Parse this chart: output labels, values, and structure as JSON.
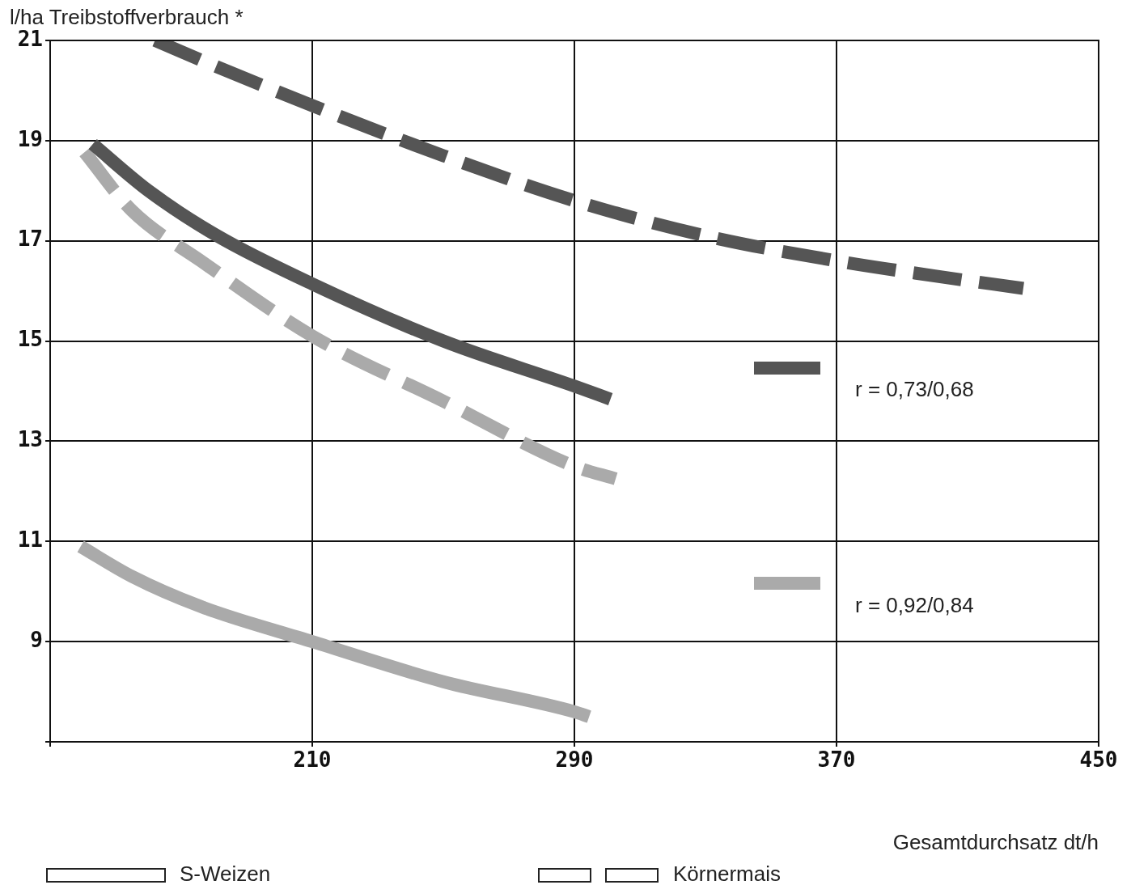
{
  "chart_data": {
    "type": "line",
    "ylabel": "l/ha  Treibstoffverbrauch *",
    "xlabel": "Gesamtdurchsatz  dt/h",
    "xlim": [
      130,
      450
    ],
    "xticks": [
      {
        "value": 130,
        "label": null
      },
      210,
      290,
      370,
      450
    ],
    "ylim": [
      7,
      21
    ],
    "yticks": [
      {
        "value": 7,
        "label": null
      },
      9,
      11,
      13,
      15,
      17,
      19,
      21
    ],
    "grid": true,
    "legend": false,
    "marker": "none",
    "series": [
      {
        "color": "#555555",
        "line_style": "dashed",
        "x": [
          162,
          180,
          210,
          250,
          290,
          330,
          370,
          400,
          427
        ],
        "values": [
          21,
          20.5,
          19.7,
          18.7,
          17.8,
          17.1,
          16.6,
          16.3,
          16.05
        ]
      },
      {
        "color": "#555555",
        "line_style": "solid",
        "x": [
          143,
          160,
          181,
          210,
          250,
          290,
          301
        ],
        "values": [
          18.93,
          18,
          17.1,
          16.14,
          15,
          14.1,
          13.84
        ]
      },
      {
        "color": "#aaaaaa",
        "line_style": "dashed",
        "x": [
          140.5,
          155,
          176,
          210,
          250,
          290,
          302.6
        ],
        "values": [
          18.77,
          17.6,
          16.6,
          15.1,
          13.8,
          12.5,
          12.25
        ]
      },
      {
        "color": "#aaaaaa",
        "line_style": "solid",
        "x": [
          139.3,
          155,
          176,
          210,
          250,
          290,
          294.5
        ],
        "values": [
          10.9,
          10.3,
          9.7,
          9,
          8.2,
          7.6,
          7.5
        ]
      }
    ],
    "annotations": [
      "r = 0,73/0,68",
      "r = 0,92/0,84",
      "S-Weizen",
      "Körnermais"
    ]
  }
}
